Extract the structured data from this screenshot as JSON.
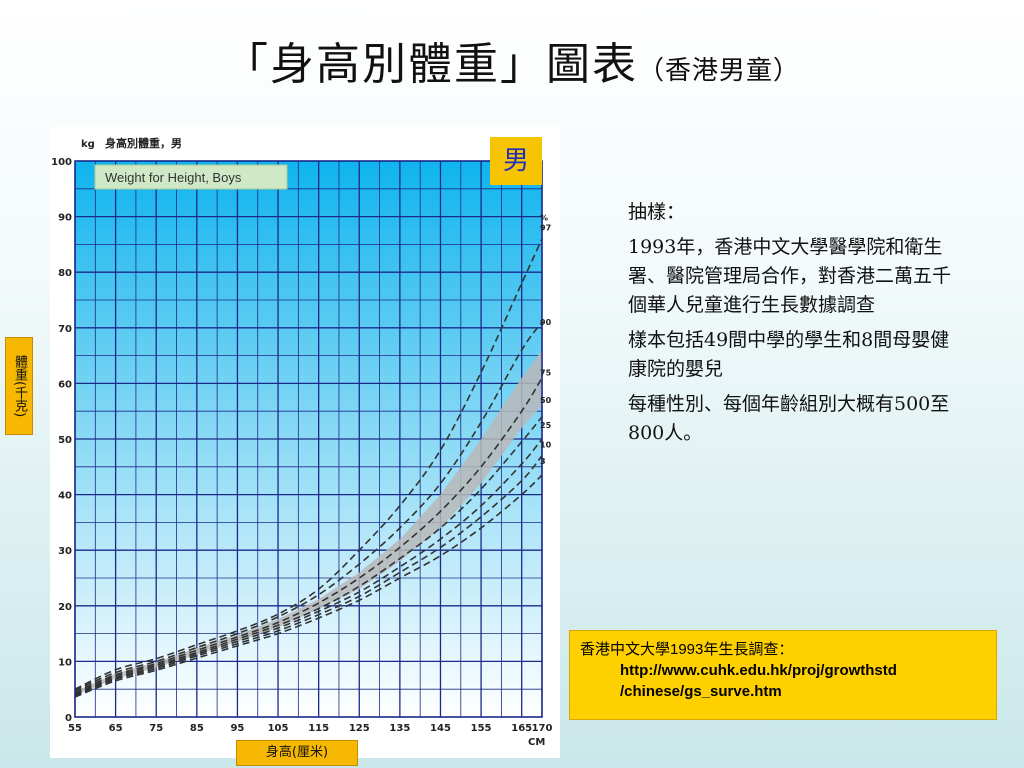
{
  "slide": {
    "title": "「身高別體重」圖表",
    "title_sub": "（香港男童）",
    "gender_badge": "男",
    "y_axis_label": "體重(千克)",
    "x_axis_label": "身高(厘米)",
    "notes": [
      "抽樣：",
      "1993年，香港中文大學醫學院和衛生署、醫院管理局合作，對香港二萬五千個華人兒童進行生長數據調查",
      "樣本包括49間中學的學生和8間母嬰健康院的嬰兒",
      "每種性別、每個年齡組別大概有500至800人。"
    ],
    "source_line1": "香港中文大學1993年生長調查：",
    "source_url_line1": "http://www.cuhk.edu.hk/proj/growthstd",
    "source_url_line2": "/chinese/gs_surve.htm"
  },
  "colors": {
    "chart_bg_top": "#0fb4ee",
    "chart_bg_bottom": "#ffffff",
    "grid": "#1a2a8a",
    "curve": "#333333",
    "band": "#b8b8b8",
    "badge": "#f6c400",
    "source_box": "#ffd000"
  },
  "chart_data": {
    "type": "line",
    "title": "身高別體重，男",
    "inner_label": "Weight for Height, Boys",
    "y_unit": "kg",
    "x_unit": "CM",
    "percent_marker": "%",
    "xlim": [
      55,
      170
    ],
    "ylim": [
      0,
      100
    ],
    "x_ticks": [
      55,
      65,
      75,
      85,
      95,
      105,
      115,
      125,
      135,
      145,
      155,
      165,
      170
    ],
    "y_ticks": [
      0,
      10,
      20,
      30,
      40,
      50,
      60,
      70,
      80,
      90,
      100
    ],
    "x": [
      55,
      65,
      75,
      85,
      95,
      105,
      115,
      125,
      135,
      145,
      155,
      165,
      170
    ],
    "series": [
      {
        "name": "97",
        "values": [
          5,
          8.5,
          10.5,
          13,
          15.5,
          18.5,
          23,
          30,
          38,
          48,
          62,
          78,
          86
        ]
      },
      {
        "name": "90",
        "values": [
          4.8,
          8,
          10,
          12.5,
          15,
          18,
          22,
          27.5,
          34,
          42,
          53,
          66,
          71
        ]
      },
      {
        "name": "75",
        "values": [
          4.5,
          7.6,
          9.6,
          12,
          14.4,
          17,
          20.5,
          25,
          30.5,
          37,
          45,
          55,
          61
        ]
      },
      {
        "name": "50",
        "values": [
          4.2,
          7.3,
          9.3,
          11.6,
          14,
          16.5,
          19.5,
          23.5,
          28.5,
          34,
          41,
          49.5,
          54
        ]
      },
      {
        "name": "25",
        "values": [
          4,
          7,
          9,
          11.3,
          13.6,
          16,
          19,
          22.5,
          27,
          32,
          38,
          45.5,
          50
        ]
      },
      {
        "name": "10",
        "values": [
          3.8,
          6.8,
          8.7,
          11,
          13.2,
          15.5,
          18.4,
          21.7,
          26,
          30.5,
          36,
          42.5,
          47
        ]
      },
      {
        "name": "3",
        "values": [
          3.6,
          6.5,
          8.4,
          10.6,
          12.8,
          15,
          17.8,
          21,
          25,
          29,
          34,
          40,
          43.5
        ]
      }
    ],
    "band": {
      "lower": [
        3.9,
        6.9,
        8.9,
        11.2,
        13.6,
        16.1,
        19.4,
        23,
        28,
        34,
        42,
        52,
        56
      ],
      "upper": [
        4.6,
        7.8,
        9.9,
        12.4,
        14.8,
        17.6,
        21.2,
        26,
        32,
        40,
        50,
        61,
        66
      ]
    }
  }
}
